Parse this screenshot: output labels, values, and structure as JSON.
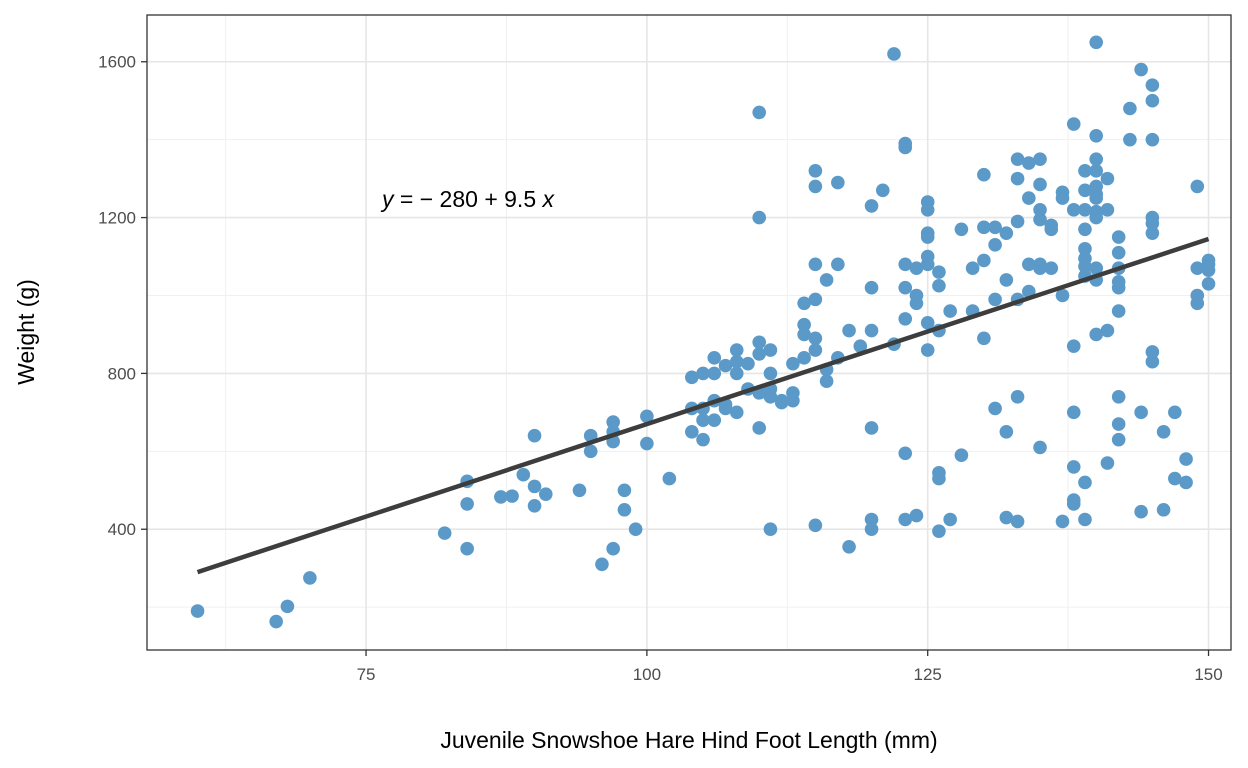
{
  "chart_data": {
    "type": "scatter",
    "xlabel": "Juvenile Snowshoe Hare Hind Foot Length (mm)",
    "ylabel": "Weight (g)",
    "xlim": [
      55.5,
      152
    ],
    "ylim": [
      90,
      1720
    ],
    "x_ticks": [
      75,
      100,
      125,
      150
    ],
    "y_ticks": [
      400,
      800,
      1200,
      1600
    ],
    "x_tick_labels": [
      "75",
      "100",
      "125",
      "150"
    ],
    "y_tick_labels": [
      "400",
      "800",
      "1200",
      "1600"
    ],
    "grid": true,
    "point_color": "#5b9ac8",
    "line_color": "#3d3d3d",
    "regression": {
      "intercept": -280,
      "slope": 9.5,
      "x_range": [
        60,
        150
      ],
      "equation_parts": [
        "y",
        " = ",
        "−",
        " 280 ",
        "+",
        " 9.5 ",
        "x"
      ]
    },
    "points": [
      [
        60,
        190
      ],
      [
        67,
        163
      ],
      [
        68,
        202
      ],
      [
        70,
        275
      ],
      [
        82,
        390
      ],
      [
        84,
        350
      ],
      [
        84,
        465
      ],
      [
        84,
        523
      ],
      [
        87,
        483
      ],
      [
        88,
        485
      ],
      [
        89,
        540
      ],
      [
        90,
        460
      ],
      [
        90,
        510
      ],
      [
        90,
        640
      ],
      [
        91,
        490
      ],
      [
        94,
        500
      ],
      [
        95,
        600
      ],
      [
        95,
        640
      ],
      [
        96,
        310
      ],
      [
        97,
        350
      ],
      [
        97,
        625
      ],
      [
        97,
        650
      ],
      [
        97,
        675
      ],
      [
        98,
        450
      ],
      [
        98,
        500
      ],
      [
        99,
        400
      ],
      [
        100,
        620
      ],
      [
        100,
        690
      ],
      [
        102,
        530
      ],
      [
        104,
        650
      ],
      [
        104,
        710
      ],
      [
        104,
        790
      ],
      [
        105,
        630
      ],
      [
        105,
        680
      ],
      [
        105,
        710
      ],
      [
        105,
        800
      ],
      [
        106,
        680
      ],
      [
        106,
        730
      ],
      [
        106,
        800
      ],
      [
        106,
        840
      ],
      [
        107,
        710
      ],
      [
        107,
        720
      ],
      [
        107,
        820
      ],
      [
        108,
        700
      ],
      [
        108,
        800
      ],
      [
        108,
        830
      ],
      [
        108,
        860
      ],
      [
        109,
        760
      ],
      [
        109,
        825
      ],
      [
        110,
        660
      ],
      [
        110,
        750
      ],
      [
        110,
        850
      ],
      [
        110,
        880
      ],
      [
        110,
        1200
      ],
      [
        110,
        1470
      ],
      [
        111,
        400
      ],
      [
        111,
        740
      ],
      [
        111,
        760
      ],
      [
        111,
        800
      ],
      [
        111,
        860
      ],
      [
        112,
        725
      ],
      [
        112,
        730
      ],
      [
        113,
        730
      ],
      [
        113,
        750
      ],
      [
        113,
        825
      ],
      [
        114,
        840
      ],
      [
        114,
        900
      ],
      [
        114,
        925
      ],
      [
        114,
        980
      ],
      [
        115,
        410
      ],
      [
        115,
        860
      ],
      [
        115,
        890
      ],
      [
        115,
        990
      ],
      [
        115,
        1080
      ],
      [
        115,
        1280
      ],
      [
        115,
        1320
      ],
      [
        116,
        780
      ],
      [
        116,
        810
      ],
      [
        116,
        1040
      ],
      [
        117,
        840
      ],
      [
        117,
        1080
      ],
      [
        117,
        1290
      ],
      [
        118,
        355
      ],
      [
        118,
        910
      ],
      [
        119,
        870
      ],
      [
        120,
        400
      ],
      [
        120,
        425
      ],
      [
        120,
        660
      ],
      [
        120,
        910
      ],
      [
        120,
        1020
      ],
      [
        120,
        1230
      ],
      [
        121,
        1270
      ],
      [
        122,
        875
      ],
      [
        122,
        1620
      ],
      [
        123,
        425
      ],
      [
        123,
        595
      ],
      [
        123,
        940
      ],
      [
        123,
        1020
      ],
      [
        123,
        1080
      ],
      [
        123,
        1380
      ],
      [
        123,
        1390
      ],
      [
        124,
        435
      ],
      [
        124,
        980
      ],
      [
        124,
        1000
      ],
      [
        124,
        1070
      ],
      [
        125,
        860
      ],
      [
        125,
        930
      ],
      [
        125,
        1080
      ],
      [
        125,
        1100
      ],
      [
        125,
        1150
      ],
      [
        125,
        1160
      ],
      [
        125,
        1220
      ],
      [
        125,
        1240
      ],
      [
        126,
        395
      ],
      [
        126,
        530
      ],
      [
        126,
        545
      ],
      [
        126,
        910
      ],
      [
        126,
        1025
      ],
      [
        126,
        1060
      ],
      [
        127,
        425
      ],
      [
        127,
        960
      ],
      [
        128,
        590
      ],
      [
        128,
        1170
      ],
      [
        129,
        960
      ],
      [
        129,
        1070
      ],
      [
        130,
        890
      ],
      [
        130,
        1090
      ],
      [
        130,
        1175
      ],
      [
        130,
        1310
      ],
      [
        131,
        710
      ],
      [
        131,
        990
      ],
      [
        131,
        1130
      ],
      [
        131,
        1175
      ],
      [
        132,
        430
      ],
      [
        132,
        650
      ],
      [
        132,
        1040
      ],
      [
        132,
        1160
      ],
      [
        133,
        420
      ],
      [
        133,
        740
      ],
      [
        133,
        990
      ],
      [
        133,
        1190
      ],
      [
        133,
        1300
      ],
      [
        133,
        1350
      ],
      [
        134,
        1010
      ],
      [
        134,
        1080
      ],
      [
        134,
        1250
      ],
      [
        134,
        1340
      ],
      [
        135,
        610
      ],
      [
        135,
        1070
      ],
      [
        135,
        1080
      ],
      [
        135,
        1195
      ],
      [
        135,
        1220
      ],
      [
        135,
        1285
      ],
      [
        135,
        1350
      ],
      [
        136,
        1070
      ],
      [
        136,
        1170
      ],
      [
        136,
        1180
      ],
      [
        137,
        420
      ],
      [
        137,
        1000
      ],
      [
        137,
        1250
      ],
      [
        137,
        1265
      ],
      [
        138,
        465
      ],
      [
        138,
        475
      ],
      [
        138,
        560
      ],
      [
        138,
        700
      ],
      [
        138,
        870
      ],
      [
        138,
        1220
      ],
      [
        138,
        1440
      ],
      [
        139,
        425
      ],
      [
        139,
        520
      ],
      [
        139,
        1050
      ],
      [
        139,
        1075
      ],
      [
        139,
        1095
      ],
      [
        139,
        1120
      ],
      [
        139,
        1170
      ],
      [
        139,
        1220
      ],
      [
        139,
        1270
      ],
      [
        139,
        1320
      ],
      [
        140,
        900
      ],
      [
        140,
        1040
      ],
      [
        140,
        1070
      ],
      [
        140,
        1200
      ],
      [
        140,
        1215
      ],
      [
        140,
        1250
      ],
      [
        140,
        1260
      ],
      [
        140,
        1280
      ],
      [
        140,
        1320
      ],
      [
        140,
        1350
      ],
      [
        140,
        1410
      ],
      [
        140,
        1650
      ],
      [
        141,
        570
      ],
      [
        141,
        910
      ],
      [
        141,
        1220
      ],
      [
        141,
        1300
      ],
      [
        142,
        630
      ],
      [
        142,
        670
      ],
      [
        142,
        740
      ],
      [
        142,
        960
      ],
      [
        142,
        1020
      ],
      [
        142,
        1035
      ],
      [
        142,
        1070
      ],
      [
        142,
        1110
      ],
      [
        142,
        1150
      ],
      [
        143,
        1400
      ],
      [
        143,
        1480
      ],
      [
        144,
        445
      ],
      [
        144,
        700
      ],
      [
        144,
        1580
      ],
      [
        145,
        830
      ],
      [
        145,
        855
      ],
      [
        145,
        1160
      ],
      [
        145,
        1185
      ],
      [
        145,
        1200
      ],
      [
        145,
        1400
      ],
      [
        145,
        1500
      ],
      [
        145,
        1540
      ],
      [
        146,
        450
      ],
      [
        146,
        650
      ],
      [
        147,
        530
      ],
      [
        147,
        700
      ],
      [
        148,
        520
      ],
      [
        148,
        580
      ],
      [
        149,
        980
      ],
      [
        149,
        1000
      ],
      [
        149,
        1070
      ],
      [
        149,
        1280
      ],
      [
        150,
        1030
      ],
      [
        150,
        1065
      ],
      [
        150,
        1080
      ],
      [
        150,
        1090
      ]
    ]
  }
}
